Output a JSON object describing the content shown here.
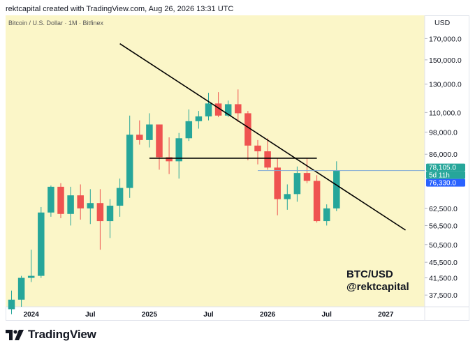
{
  "header": {
    "text": "rektcapital created with TradingView.com, Aug 26, 2026 13:31 UTC"
  },
  "footer": {
    "brand": "TradingView"
  },
  "colors": {
    "background": "#fbf6c8",
    "up": "#26a69a",
    "down": "#ef5350",
    "trendline": "#000000",
    "price_line": "#2962ff"
  },
  "icons": {
    "brand_logo": "tradingview-logo-icon"
  },
  "chart_data": {
    "type": "candlestick",
    "title": "Bitcoin / U.S. Dollar · 1M · Bitfinex",
    "currency": "USD",
    "scale": "log",
    "ylim": [
      35000,
      195000
    ],
    "grid": false,
    "y_ticks": [
      37500,
      41500,
      45500,
      50500,
      56500,
      62500,
      86000,
      98000,
      110000,
      130000,
      150000,
      170000
    ],
    "y_tick_labels": [
      "37,500.0",
      "41,500.0",
      "45,500.0",
      "50,500.0",
      "56,500.0",
      "62,500.0",
      "86,000.0",
      "98,000.0",
      "110,000.0",
      "130,000.0",
      "150,000.0",
      "170,000.0"
    ],
    "x_labels": [
      {
        "label": "2024",
        "idx": 2
      },
      {
        "label": "Jul",
        "idx": 8
      },
      {
        "label": "2025",
        "idx": 14
      },
      {
        "label": "Jul",
        "idx": 20
      },
      {
        "label": "2026",
        "idx": 26
      },
      {
        "label": "Jul",
        "idx": 32
      },
      {
        "label": "2027",
        "idx": 38
      }
    ],
    "candles": [
      {
        "o": 34500,
        "h": 38500,
        "l": 33500,
        "c": 36500
      },
      {
        "o": 36500,
        "h": 42000,
        "l": 35000,
        "c": 41500
      },
      {
        "o": 41500,
        "h": 49000,
        "l": 40500,
        "c": 42000
      },
      {
        "o": 42000,
        "h": 63000,
        "l": 41500,
        "c": 61000
      },
      {
        "o": 61000,
        "h": 71500,
        "l": 59500,
        "c": 71000
      },
      {
        "o": 71000,
        "h": 72500,
        "l": 59000,
        "c": 60500
      },
      {
        "o": 60500,
        "h": 71000,
        "l": 56500,
        "c": 67500
      },
      {
        "o": 67500,
        "h": 72000,
        "l": 58500,
        "c": 62500
      },
      {
        "o": 62500,
        "h": 70000,
        "l": 57000,
        "c": 64500
      },
      {
        "o": 64500,
        "h": 70000,
        "l": 49000,
        "c": 58000
      },
      {
        "o": 58000,
        "h": 66000,
        "l": 52500,
        "c": 63500
      },
      {
        "o": 63500,
        "h": 74500,
        "l": 59500,
        "c": 70500
      },
      {
        "o": 70500,
        "h": 108000,
        "l": 66500,
        "c": 96500
      },
      {
        "o": 96500,
        "h": 105000,
        "l": 91000,
        "c": 93500
      },
      {
        "o": 93500,
        "h": 109500,
        "l": 89500,
        "c": 102500
      },
      {
        "o": 102500,
        "h": 102500,
        "l": 78500,
        "c": 84500
      },
      {
        "o": 84500,
        "h": 95000,
        "l": 76500,
        "c": 82500
      },
      {
        "o": 82500,
        "h": 97500,
        "l": 74500,
        "c": 94500
      },
      {
        "o": 94500,
        "h": 112000,
        "l": 93000,
        "c": 104500
      },
      {
        "o": 104500,
        "h": 111000,
        "l": 100000,
        "c": 107500
      },
      {
        "o": 107500,
        "h": 123500,
        "l": 105000,
        "c": 116000
      },
      {
        "o": 116000,
        "h": 124000,
        "l": 107000,
        "c": 108000
      },
      {
        "o": 108000,
        "h": 118000,
        "l": 107000,
        "c": 115500
      },
      {
        "o": 115500,
        "h": 126000,
        "l": 104000,
        "c": 109500
      },
      {
        "o": 109500,
        "h": 111000,
        "l": 83000,
        "c": 90500
      },
      {
        "o": 90500,
        "h": 93500,
        "l": 81000,
        "c": 87500
      },
      {
        "o": 87500,
        "h": 94500,
        "l": 78500,
        "c": 79500
      },
      {
        "o": 79500,
        "h": 84000,
        "l": 60000,
        "c": 66000
      },
      {
        "o": 66000,
        "h": 72000,
        "l": 62000,
        "c": 68000
      },
      {
        "o": 68000,
        "h": 80000,
        "l": 65000,
        "c": 77000
      },
      {
        "o": 77000,
        "h": 84000,
        "l": 72500,
        "c": 73500
      },
      {
        "o": 73500,
        "h": 76000,
        "l": 57500,
        "c": 58000
      },
      {
        "o": 58000,
        "h": 64000,
        "l": 56500,
        "c": 62500
      },
      {
        "o": 62500,
        "h": 82500,
        "l": 61500,
        "c": 78105
      }
    ],
    "annotations": {
      "descending_trendline": [
        {
          "idx": 11,
          "price": 165000
        },
        {
          "idx": 40,
          "price": 55000
        }
      ],
      "horizontal_level": {
        "from_idx": 14,
        "to_idx": 31,
        "price": 84000
      },
      "current_price_line": {
        "from_idx": 25,
        "price": 78105
      }
    },
    "price_badges": [
      {
        "text": "78,105.0",
        "bg": "#26a69a",
        "fg": "#ffffff"
      },
      {
        "text": "5d 11h",
        "bg": "#26a69a",
        "fg": "#ffffff"
      },
      {
        "text": "76,330.0",
        "bg": "#2962ff",
        "fg": "#ffffff"
      }
    ],
    "watermark": [
      "BTC/USD",
      "@rektcapital"
    ]
  }
}
